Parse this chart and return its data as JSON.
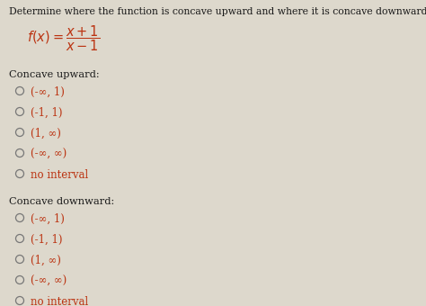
{
  "background_color": "#ddd8cc",
  "title_text": "Determine where the function is concave upward and where it is concave downward.",
  "title_fontsize": 7.8,
  "title_color": "#1a1a1a",
  "section1_label": "Concave upward:",
  "section2_label": "Concave downward:",
  "options": [
    "(-∞, 1)",
    "(-1, 1)",
    "(1, ∞)",
    "(-∞, ∞)",
    "no interval"
  ],
  "text_color": "#bb3311",
  "label_color": "#1a1a1a",
  "circle_edge_color": "#777777",
  "font_size_options": 8.5,
  "font_size_section": 8.2,
  "fig_width": 4.74,
  "fig_height": 3.4,
  "dpi": 100
}
